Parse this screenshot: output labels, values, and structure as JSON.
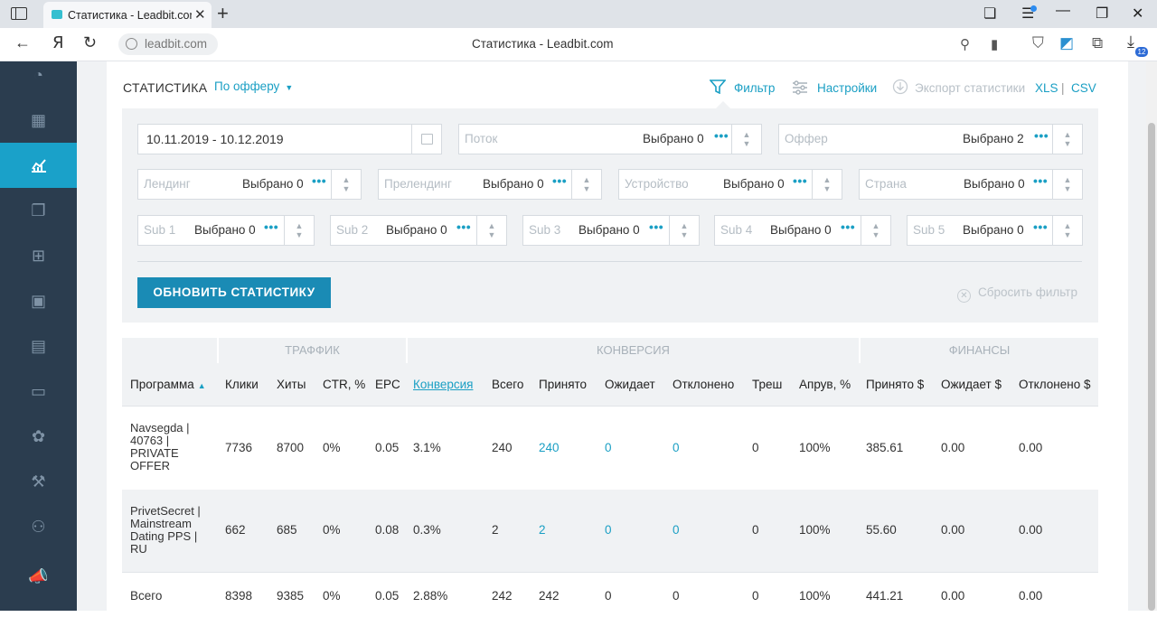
{
  "browser": {
    "tab_title": "Статистика - Leadbit.com",
    "tab_close": "✕",
    "new_tab": "+",
    "url": "leadbit.com",
    "page_title": "Статистика - Leadbit.com",
    "downloads_count": "12"
  },
  "sidebar": {
    "items": [
      {
        "icon": "dashboard-icon",
        "glyph": "◔"
      },
      {
        "icon": "gift-icon",
        "glyph": "▦"
      },
      {
        "icon": "stats-chart-icon",
        "glyph": "📈",
        "active": true
      },
      {
        "icon": "copy-icon",
        "glyph": "❐"
      },
      {
        "icon": "apps-icon",
        "glyph": "⊞"
      },
      {
        "icon": "briefcase-icon",
        "glyph": "▣"
      },
      {
        "icon": "money-icon",
        "glyph": "▤"
      },
      {
        "icon": "monitor-icon",
        "glyph": "▭"
      },
      {
        "icon": "puzzle-icon",
        "glyph": "✿"
      },
      {
        "icon": "tools-icon",
        "glyph": "⚒"
      },
      {
        "icon": "user-icon",
        "glyph": "⚇"
      },
      {
        "icon": "megaphone-icon",
        "glyph": "📣"
      }
    ]
  },
  "toolbar": {
    "title": "СТАТИСТИКА",
    "mode": "По офферу",
    "filter": "Фильтр",
    "settings": "Настройки",
    "export": "Экспорт статистики",
    "xls": "XLS",
    "sep": "|",
    "csv": "CSV"
  },
  "filters": {
    "date": "10.11.2019 - 10.12.2019",
    "stream": {
      "label": "Поток",
      "value": "Выбрано 0"
    },
    "offer": {
      "label": "Оффер",
      "value": "Выбрано 2"
    },
    "landing": {
      "label": "Лендинг",
      "value": "Выбрано 0"
    },
    "prelanding": {
      "label": "Прелендинг",
      "value": "Выбрано 0"
    },
    "device": {
      "label": "Устройство",
      "value": "Выбрано 0"
    },
    "country": {
      "label": "Страна",
      "value": "Выбрано 0"
    },
    "sub1": {
      "label": "Sub 1",
      "value": "Выбрано 0"
    },
    "sub2": {
      "label": "Sub 2",
      "value": "Выбрано 0"
    },
    "sub3": {
      "label": "Sub 3",
      "value": "Выбрано 0"
    },
    "sub4": {
      "label": "Sub 4",
      "value": "Выбрано 0"
    },
    "sub5": {
      "label": "Sub 5",
      "value": "Выбрано 0"
    },
    "dots": "•••",
    "update_button": "ОБНОВИТЬ СТАТИСТИКУ",
    "reset": "Сбросить фильтр"
  },
  "table": {
    "groups": {
      "traffic": "ТРАФФИК",
      "conversion": "КОНВЕРСИЯ",
      "finance": "ФИНАНСЫ"
    },
    "columns": [
      "Программа",
      "Клики",
      "Хиты",
      "CTR, %",
      "EPC",
      "Конверсия",
      "Всего",
      "Принято",
      "Ожидает",
      "Отклонено",
      "Треш",
      "Апрув, %",
      "Принято $",
      "Ожидает $",
      "Отклонено $"
    ],
    "rows": [
      {
        "program": "Navsegda | 40763 | PRIVATE OFFER",
        "clicks": "7736",
        "hits": "8700",
        "ctr": "0%",
        "epc": "0.05",
        "conv": "3.1%",
        "total": "240",
        "accepted": "240",
        "pending": "0",
        "rejected": "0",
        "trash": "0",
        "approve": "100%",
        "acc_usd": "385.61",
        "pend_usd": "0.00",
        "rej_usd": "0.00"
      },
      {
        "program": "PrivetSecret | Mainstream Dating PPS | RU",
        "clicks": "662",
        "hits": "685",
        "ctr": "0%",
        "epc": "0.08",
        "conv": "0.3%",
        "total": "2",
        "accepted": "2",
        "pending": "0",
        "rejected": "0",
        "trash": "0",
        "approve": "100%",
        "acc_usd": "55.60",
        "pend_usd": "0.00",
        "rej_usd": "0.00"
      }
    ],
    "totals": {
      "program": "Всего",
      "clicks": "8398",
      "hits": "9385",
      "ctr": "0%",
      "epc": "0.05",
      "conv": "2.88%",
      "total": "242",
      "accepted": "242",
      "pending": "0",
      "rejected": "0",
      "trash": "0",
      "approve": "100%",
      "acc_usd": "441.21",
      "pend_usd": "0.00",
      "rej_usd": "0.00"
    }
  }
}
